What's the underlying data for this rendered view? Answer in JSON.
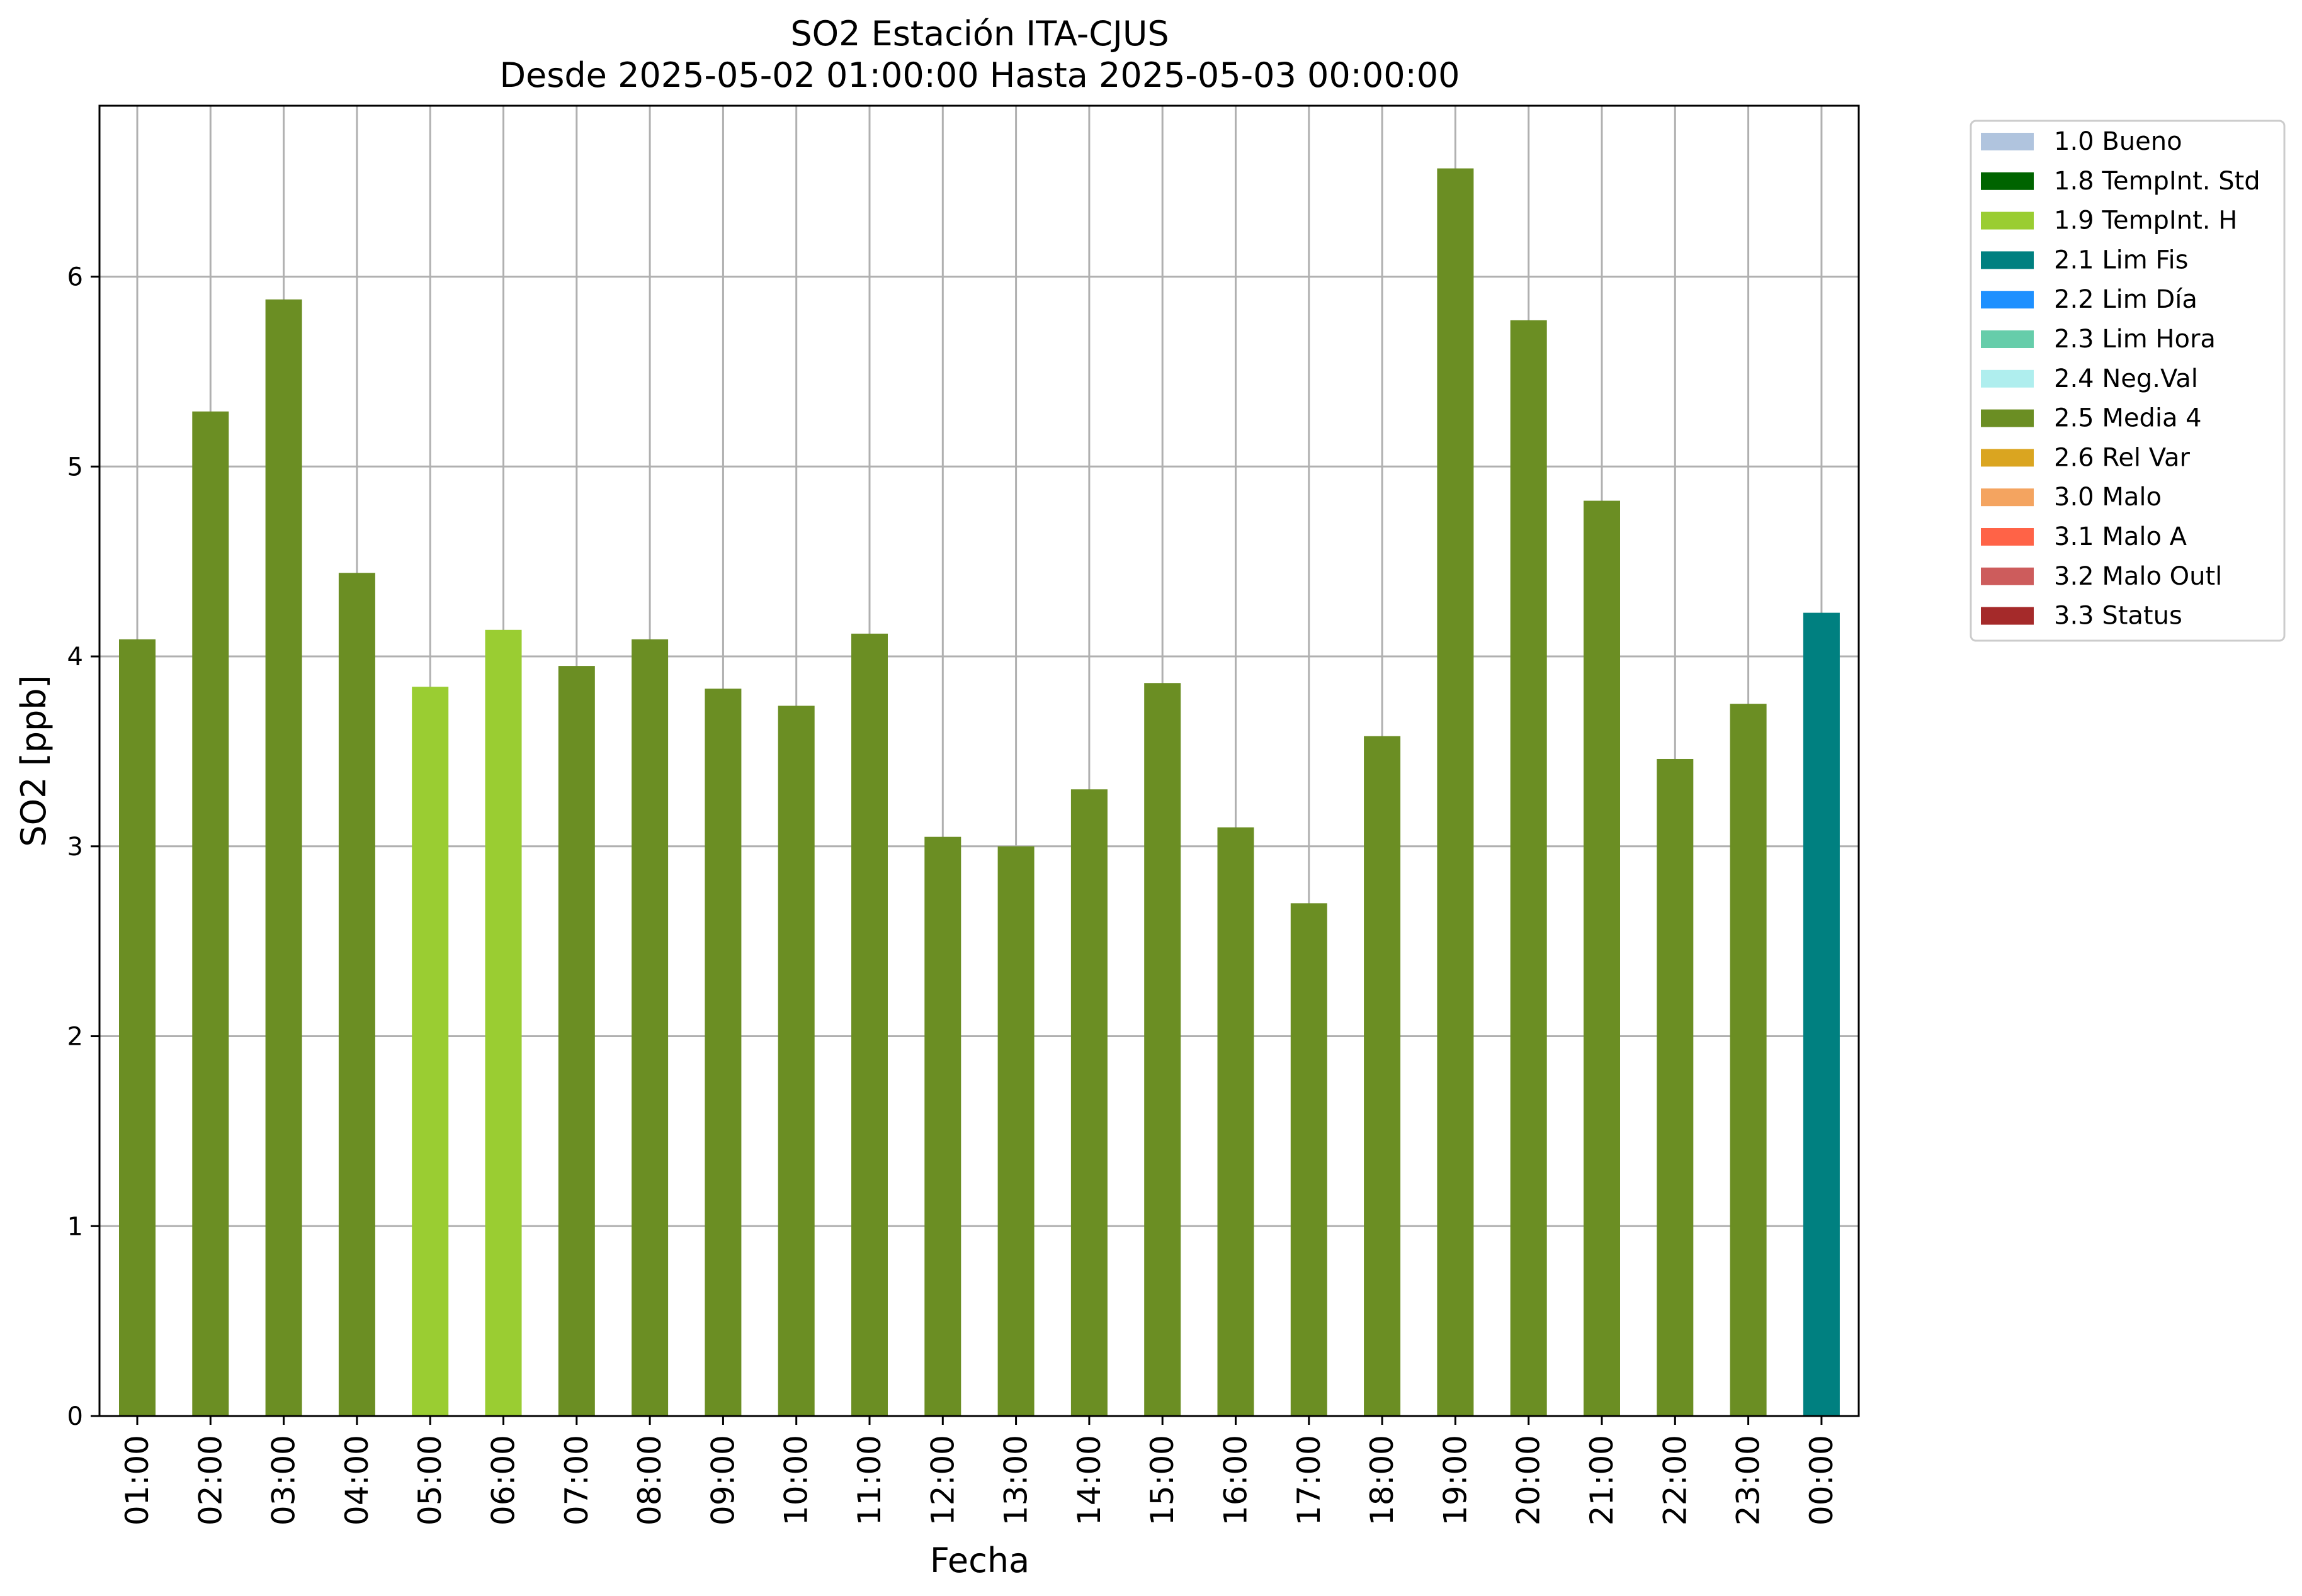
{
  "chart_data": {
    "type": "bar",
    "title": "SO2 Estación ITA-CJUS",
    "subtitle": "Desde 2025-05-02 01:00:00 Hasta 2025-05-03 00:00:00",
    "xlabel": "Fecha",
    "ylabel": "SO2 [ppb]",
    "ylim": [
      0,
      6.9
    ],
    "yticks": [
      "0",
      "1",
      "2",
      "3",
      "4",
      "5",
      "6"
    ],
    "grid": true,
    "legend_position": "outside-top-right",
    "categories": [
      "01:00",
      "02:00",
      "03:00",
      "04:00",
      "05:00",
      "06:00",
      "07:00",
      "08:00",
      "09:00",
      "10:00",
      "11:00",
      "12:00",
      "13:00",
      "14:00",
      "15:00",
      "16:00",
      "17:00",
      "18:00",
      "19:00",
      "20:00",
      "21:00",
      "22:00",
      "23:00",
      "00:00"
    ],
    "values": [
      4.09,
      5.29,
      5.88,
      4.44,
      3.84,
      4.14,
      3.95,
      4.09,
      3.83,
      3.74,
      4.12,
      3.05,
      3.0,
      3.3,
      3.86,
      3.1,
      2.7,
      3.58,
      6.57,
      5.77,
      4.82,
      3.46,
      3.75,
      4.23
    ],
    "flags": [
      "2.5 Media 4",
      "2.5 Media 4",
      "2.5 Media 4",
      "2.5 Media 4",
      "1.9 TempInt. H",
      "1.9 TempInt. H",
      "2.5 Media 4",
      "2.5 Media 4",
      "2.5 Media 4",
      "2.5 Media 4",
      "2.5 Media 4",
      "2.5 Media 4",
      "2.5 Media 4",
      "2.5 Media 4",
      "2.5 Media 4",
      "2.5 Media 4",
      "2.5 Media 4",
      "2.5 Media 4",
      "2.5 Media 4",
      "2.5 Media 4",
      "2.5 Media 4",
      "2.5 Media 4",
      "2.5 Media 4",
      "2.1 Lim Fis"
    ],
    "legend": [
      {
        "name": "1.0 Bueno",
        "color": "#b0c4de"
      },
      {
        "name": "1.8 TempInt. Std",
        "color": "#006400"
      },
      {
        "name": "1.9 TempInt. H",
        "color": "#9acd32"
      },
      {
        "name": "2.1 Lim Fis",
        "color": "#008080"
      },
      {
        "name": "2.2 Lim Día",
        "color": "#1e90ff"
      },
      {
        "name": "2.3 Lim Hora",
        "color": "#66cdaa"
      },
      {
        "name": "2.4 Neg.Val",
        "color": "#afeeee"
      },
      {
        "name": "2.5 Media 4",
        "color": "#6b8e23"
      },
      {
        "name": "2.6 Rel Var",
        "color": "#daa520"
      },
      {
        "name": "3.0 Malo",
        "color": "#f4a460"
      },
      {
        "name": "3.1 Malo A",
        "color": "#ff6347"
      },
      {
        "name": "3.2 Malo Outl",
        "color": "#cd5c5c"
      },
      {
        "name": "3.3 Status",
        "color": "#a52a2a"
      }
    ]
  }
}
